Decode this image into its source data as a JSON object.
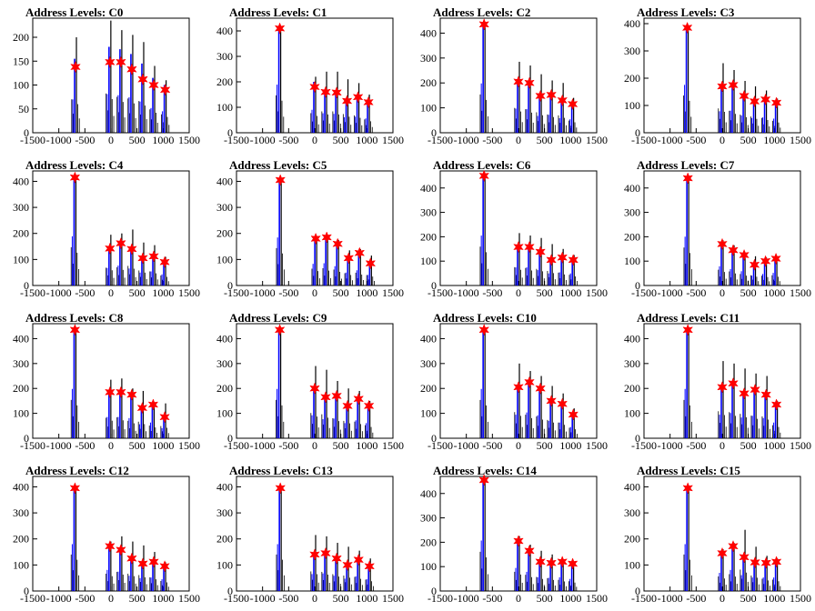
{
  "chart_data": [
    {
      "type": "bar",
      "title": "Address Levels: C0",
      "xlim": [
        -1500,
        1500
      ],
      "ylim": [
        0,
        240
      ],
      "yticks": [
        0,
        50,
        100,
        150,
        200
      ],
      "xticks": [
        -1500,
        -1000,
        -500,
        0,
        500,
        1000,
        1500
      ],
      "peaks": [
        {
          "x": -680,
          "black": 200,
          "blue": 155,
          "star": 138
        },
        {
          "x": -20,
          "black": 235,
          "blue": 180,
          "star": 148
        },
        {
          "x": 190,
          "black": 215,
          "blue": 175,
          "star": 148
        },
        {
          "x": 400,
          "black": 205,
          "blue": 165,
          "star": 133
        },
        {
          "x": 610,
          "black": 190,
          "blue": 145,
          "star": 112
        },
        {
          "x": 820,
          "black": 140,
          "blue": 115,
          "star": 100
        },
        {
          "x": 1040,
          "black": 110,
          "blue": 100,
          "star": 90
        }
      ]
    },
    {
      "type": "bar",
      "title": "Address Levels: C1",
      "xlim": [
        -1500,
        1500
      ],
      "ylim": [
        0,
        450
      ],
      "yticks": [
        0,
        100,
        200,
        300,
        400
      ],
      "xticks": [
        -1500,
        -1000,
        -500,
        0,
        500,
        1000,
        1500
      ],
      "peaks": [
        {
          "x": -670,
          "black": 420,
          "blue": 420,
          "star": 410
        },
        {
          "x": 0,
          "black": 220,
          "blue": 200,
          "star": 180
        },
        {
          "x": 210,
          "black": 240,
          "blue": 170,
          "star": 160
        },
        {
          "x": 420,
          "black": 240,
          "blue": 165,
          "star": 158
        },
        {
          "x": 620,
          "black": 210,
          "blue": 135,
          "star": 125
        },
        {
          "x": 830,
          "black": 195,
          "blue": 140,
          "star": 140
        },
        {
          "x": 1030,
          "black": 150,
          "blue": 125,
          "star": 120
        }
      ]
    },
    {
      "type": "bar",
      "title": "Address Levels: C2",
      "xlim": [
        -1500,
        1500
      ],
      "ylim": [
        0,
        460
      ],
      "yticks": [
        0,
        100,
        200,
        300,
        400
      ],
      "xticks": [
        -1500,
        -1000,
        -500,
        0,
        500,
        1000,
        1500
      ],
      "peaks": [
        {
          "x": -660,
          "black": 440,
          "blue": 440,
          "star": 435
        },
        {
          "x": 0,
          "black": 285,
          "blue": 215,
          "star": 205
        },
        {
          "x": 210,
          "black": 270,
          "blue": 210,
          "star": 200
        },
        {
          "x": 420,
          "black": 235,
          "blue": 150,
          "star": 148
        },
        {
          "x": 630,
          "black": 210,
          "blue": 160,
          "star": 152
        },
        {
          "x": 840,
          "black": 200,
          "blue": 130,
          "star": 130
        },
        {
          "x": 1040,
          "black": 140,
          "blue": 120,
          "star": 115
        }
      ]
    },
    {
      "type": "bar",
      "title": "Address Levels: C3",
      "xlim": [
        -1500,
        1500
      ],
      "ylim": [
        0,
        420
      ],
      "yticks": [
        0,
        100,
        200,
        300,
        400
      ],
      "xticks": [
        -1500,
        -1000,
        -500,
        0,
        500,
        1000,
        1500
      ],
      "peaks": [
        {
          "x": -670,
          "black": 390,
          "blue": 390,
          "star": 385
        },
        {
          "x": 0,
          "black": 255,
          "blue": 175,
          "star": 170
        },
        {
          "x": 210,
          "black": 230,
          "blue": 180,
          "star": 175
        },
        {
          "x": 420,
          "black": 190,
          "blue": 140,
          "star": 135
        },
        {
          "x": 620,
          "black": 170,
          "blue": 120,
          "star": 115
        },
        {
          "x": 830,
          "black": 155,
          "blue": 125,
          "star": 122
        },
        {
          "x": 1040,
          "black": 125,
          "blue": 115,
          "star": 110
        }
      ]
    },
    {
      "type": "bar",
      "title": "Address Levels: C4",
      "xlim": [
        -1500,
        1500
      ],
      "ylim": [
        0,
        440
      ],
      "yticks": [
        0,
        100,
        200,
        300,
        400
      ],
      "xticks": [
        -1500,
        -1000,
        -500,
        0,
        500,
        1000,
        1500
      ],
      "peaks": [
        {
          "x": -690,
          "black": 420,
          "blue": 420,
          "star": 415
        },
        {
          "x": -20,
          "black": 195,
          "blue": 150,
          "star": 142
        },
        {
          "x": 190,
          "black": 200,
          "blue": 170,
          "star": 162
        },
        {
          "x": 400,
          "black": 215,
          "blue": 145,
          "star": 140
        },
        {
          "x": 610,
          "black": 165,
          "blue": 110,
          "star": 105
        },
        {
          "x": 820,
          "black": 155,
          "blue": 120,
          "star": 112
        },
        {
          "x": 1030,
          "black": 110,
          "blue": 95,
          "star": 90
        }
      ]
    },
    {
      "type": "bar",
      "title": "Address Levels: C5",
      "xlim": [
        -1500,
        1500
      ],
      "ylim": [
        0,
        440
      ],
      "yticks": [
        0,
        100,
        200,
        300,
        400
      ],
      "xticks": [
        -1500,
        -1000,
        -500,
        0,
        500,
        1000,
        1500
      ],
      "peaks": [
        {
          "x": -660,
          "black": 410,
          "blue": 410,
          "star": 405
        },
        {
          "x": 20,
          "black": 185,
          "blue": 185,
          "star": 180
        },
        {
          "x": 230,
          "black": 190,
          "blue": 190,
          "star": 185
        },
        {
          "x": 440,
          "black": 175,
          "blue": 165,
          "star": 160
        },
        {
          "x": 650,
          "black": 135,
          "blue": 110,
          "star": 105
        },
        {
          "x": 860,
          "black": 140,
          "blue": 130,
          "star": 125
        },
        {
          "x": 1070,
          "black": 115,
          "blue": 90,
          "star": 85
        }
      ]
    },
    {
      "type": "bar",
      "title": "Address Levels: C6",
      "xlim": [
        -1500,
        1500
      ],
      "ylim": [
        0,
        470
      ],
      "yticks": [
        0,
        100,
        200,
        300,
        400
      ],
      "xticks": [
        -1500,
        -1000,
        -500,
        0,
        500,
        1000,
        1500
      ],
      "peaks": [
        {
          "x": -660,
          "black": 455,
          "blue": 455,
          "star": 450
        },
        {
          "x": 0,
          "black": 215,
          "blue": 165,
          "star": 158
        },
        {
          "x": 210,
          "black": 205,
          "blue": 165,
          "star": 158
        },
        {
          "x": 420,
          "black": 195,
          "blue": 140,
          "star": 138
        },
        {
          "x": 630,
          "black": 170,
          "blue": 110,
          "star": 105
        },
        {
          "x": 840,
          "black": 150,
          "blue": 120,
          "star": 115
        },
        {
          "x": 1050,
          "black": 125,
          "blue": 110,
          "star": 105
        }
      ]
    },
    {
      "type": "bar",
      "title": "Address Levels: C7",
      "xlim": [
        -1500,
        1500
      ],
      "ylim": [
        0,
        470
      ],
      "yticks": [
        0,
        100,
        200,
        300,
        400
      ],
      "xticks": [
        -1500,
        -1000,
        -500,
        0,
        500,
        1000,
        1500
      ],
      "peaks": [
        {
          "x": -660,
          "black": 445,
          "blue": 445,
          "star": 440
        },
        {
          "x": 0,
          "black": 185,
          "blue": 175,
          "star": 170
        },
        {
          "x": 210,
          "black": 165,
          "blue": 150,
          "star": 145
        },
        {
          "x": 420,
          "black": 135,
          "blue": 130,
          "star": 125
        },
        {
          "x": 620,
          "black": 120,
          "blue": 90,
          "star": 85
        },
        {
          "x": 830,
          "black": 115,
          "blue": 105,
          "star": 100
        },
        {
          "x": 1030,
          "black": 120,
          "blue": 115,
          "star": 110
        }
      ]
    },
    {
      "type": "bar",
      "title": "Address Levels: C8",
      "xlim": [
        -1500,
        1500
      ],
      "ylim": [
        0,
        460
      ],
      "yticks": [
        0,
        100,
        200,
        300,
        400
      ],
      "xticks": [
        -1500,
        -1000,
        -500,
        0,
        500,
        1000,
        1500
      ],
      "peaks": [
        {
          "x": -690,
          "black": 440,
          "blue": 440,
          "star": 435
        },
        {
          "x": -20,
          "black": 235,
          "blue": 190,
          "star": 185
        },
        {
          "x": 190,
          "black": 240,
          "blue": 190,
          "star": 185
        },
        {
          "x": 400,
          "black": 200,
          "blue": 180,
          "star": 175
        },
        {
          "x": 600,
          "black": 190,
          "blue": 125,
          "star": 122
        },
        {
          "x": 810,
          "black": 145,
          "blue": 140,
          "star": 135
        },
        {
          "x": 1030,
          "black": 140,
          "blue": 90,
          "star": 85
        }
      ]
    },
    {
      "type": "bar",
      "title": "Address Levels: C9",
      "xlim": [
        -1500,
        1500
      ],
      "ylim": [
        0,
        460
      ],
      "yticks": [
        0,
        100,
        200,
        300,
        400
      ],
      "xticks": [
        -1500,
        -1000,
        -500,
        0,
        500,
        1000,
        1500
      ],
      "peaks": [
        {
          "x": -670,
          "black": 440,
          "blue": 440,
          "star": 435
        },
        {
          "x": 0,
          "black": 290,
          "blue": 205,
          "star": 200
        },
        {
          "x": 210,
          "black": 275,
          "blue": 170,
          "star": 165
        },
        {
          "x": 420,
          "black": 230,
          "blue": 175,
          "star": 170
        },
        {
          "x": 630,
          "black": 200,
          "blue": 135,
          "star": 130
        },
        {
          "x": 840,
          "black": 190,
          "blue": 160,
          "star": 158
        },
        {
          "x": 1040,
          "black": 150,
          "blue": 135,
          "star": 130
        }
      ]
    },
    {
      "type": "bar",
      "title": "Address Levels: C10",
      "xlim": [
        -1500,
        1500
      ],
      "ylim": [
        0,
        460
      ],
      "yticks": [
        0,
        100,
        200,
        300,
        400
      ],
      "xticks": [
        -1500,
        -1000,
        -500,
        0,
        500,
        1000,
        1500
      ],
      "peaks": [
        {
          "x": -660,
          "black": 440,
          "blue": 440,
          "star": 435
        },
        {
          "x": 0,
          "black": 300,
          "blue": 210,
          "star": 205
        },
        {
          "x": 210,
          "black": 270,
          "blue": 230,
          "star": 225
        },
        {
          "x": 420,
          "black": 250,
          "blue": 205,
          "star": 200
        },
        {
          "x": 630,
          "black": 210,
          "blue": 155,
          "star": 150
        },
        {
          "x": 840,
          "black": 180,
          "blue": 140,
          "star": 138
        },
        {
          "x": 1050,
          "black": 120,
          "blue": 100,
          "star": 95
        }
      ]
    },
    {
      "type": "bar",
      "title": "Address Levels: C11",
      "xlim": [
        -1500,
        1500
      ],
      "ylim": [
        0,
        460
      ],
      "yticks": [
        0,
        100,
        200,
        300,
        400
      ],
      "xticks": [
        -1500,
        -1000,
        -500,
        0,
        500,
        1000,
        1500
      ],
      "peaks": [
        {
          "x": -660,
          "black": 440,
          "blue": 440,
          "star": 435
        },
        {
          "x": 0,
          "black": 310,
          "blue": 210,
          "star": 205
        },
        {
          "x": 210,
          "black": 300,
          "blue": 225,
          "star": 220
        },
        {
          "x": 420,
          "black": 280,
          "blue": 185,
          "star": 180
        },
        {
          "x": 630,
          "black": 260,
          "blue": 200,
          "star": 195
        },
        {
          "x": 840,
          "black": 250,
          "blue": 180,
          "star": 175
        },
        {
          "x": 1040,
          "black": 150,
          "blue": 140,
          "star": 135
        }
      ]
    },
    {
      "type": "bar",
      "title": "Address Levels: C12",
      "xlim": [
        -1500,
        1500
      ],
      "ylim": [
        0,
        440
      ],
      "yticks": [
        0,
        100,
        200,
        300,
        400
      ],
      "xticks": [
        -1500,
        -1000,
        -500,
        0,
        500,
        1000,
        1500
      ],
      "peaks": [
        {
          "x": -690,
          "black": 400,
          "blue": 400,
          "star": 395
        },
        {
          "x": -20,
          "black": 190,
          "blue": 180,
          "star": 172
        },
        {
          "x": 190,
          "black": 210,
          "blue": 165,
          "star": 158
        },
        {
          "x": 400,
          "black": 190,
          "blue": 130,
          "star": 125
        },
        {
          "x": 610,
          "black": 175,
          "blue": 110,
          "star": 105
        },
        {
          "x": 820,
          "black": 150,
          "blue": 115,
          "star": 112
        },
        {
          "x": 1030,
          "black": 110,
          "blue": 100,
          "star": 95
        }
      ]
    },
    {
      "type": "bar",
      "title": "Address Levels: C13",
      "xlim": [
        -1500,
        1500
      ],
      "ylim": [
        0,
        440
      ],
      "yticks": [
        0,
        100,
        200,
        300,
        400
      ],
      "xticks": [
        -1500,
        -1000,
        -500,
        0,
        500,
        1000,
        1500
      ],
      "peaks": [
        {
          "x": -660,
          "black": 400,
          "blue": 400,
          "star": 395
        },
        {
          "x": 0,
          "black": 215,
          "blue": 145,
          "star": 140
        },
        {
          "x": 210,
          "black": 210,
          "blue": 150,
          "star": 145
        },
        {
          "x": 420,
          "black": 185,
          "blue": 130,
          "star": 125
        },
        {
          "x": 630,
          "black": 170,
          "blue": 105,
          "star": 100
        },
        {
          "x": 840,
          "black": 155,
          "blue": 125,
          "star": 120
        },
        {
          "x": 1050,
          "black": 125,
          "blue": 100,
          "star": 95
        }
      ]
    },
    {
      "type": "bar",
      "title": "Address Levels: C14",
      "xlim": [
        -1500,
        1500
      ],
      "ylim": [
        0,
        470
      ],
      "yticks": [
        0,
        100,
        200,
        300,
        400
      ],
      "xticks": [
        -1500,
        -1000,
        -500,
        0,
        500,
        1000,
        1500
      ],
      "peaks": [
        {
          "x": -660,
          "black": 460,
          "blue": 460,
          "star": 455
        },
        {
          "x": 0,
          "black": 225,
          "blue": 210,
          "star": 205
        },
        {
          "x": 210,
          "black": 190,
          "blue": 175,
          "star": 165
        },
        {
          "x": 420,
          "black": 165,
          "blue": 125,
          "star": 120
        },
        {
          "x": 630,
          "black": 150,
          "blue": 120,
          "star": 115
        },
        {
          "x": 840,
          "black": 130,
          "blue": 125,
          "star": 120
        },
        {
          "x": 1040,
          "black": 115,
          "blue": 110,
          "star": 112
        }
      ]
    },
    {
      "type": "bar",
      "title": "Address Levels: C15",
      "xlim": [
        -1500,
        1500
      ],
      "ylim": [
        0,
        440
      ],
      "yticks": [
        0,
        100,
        200,
        300,
        400
      ],
      "xticks": [
        -1500,
        -1000,
        -500,
        0,
        500,
        1000,
        1500
      ],
      "peaks": [
        {
          "x": -660,
          "black": 400,
          "blue": 400,
          "star": 395
        },
        {
          "x": 0,
          "black": 160,
          "blue": 155,
          "star": 145
        },
        {
          "x": 210,
          "black": 185,
          "blue": 180,
          "star": 172
        },
        {
          "x": 420,
          "black": 235,
          "blue": 135,
          "star": 130
        },
        {
          "x": 630,
          "black": 170,
          "blue": 115,
          "star": 110
        },
        {
          "x": 840,
          "black": 135,
          "blue": 115,
          "star": 108
        },
        {
          "x": 1040,
          "black": 125,
          "blue": 115,
          "star": 112
        }
      ]
    }
  ],
  "colors": {
    "black_hist": "#000000",
    "blue_hist": "#0000ff",
    "marker": "#ff0000",
    "frame": "#000000"
  }
}
